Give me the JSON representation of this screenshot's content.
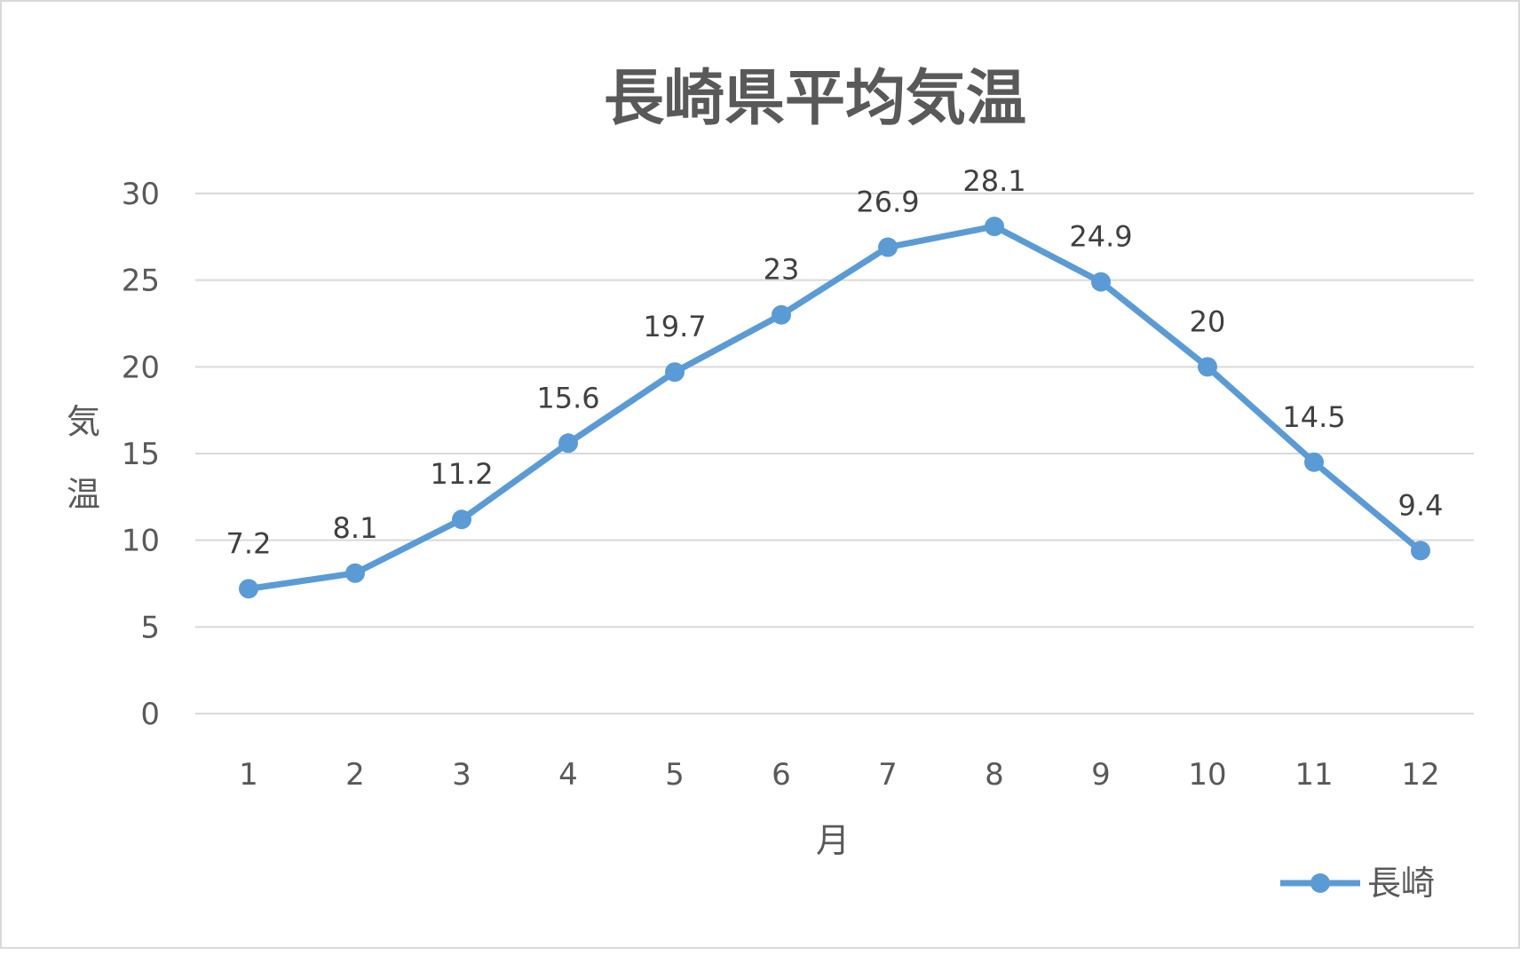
{
  "chart_data": {
    "type": "line",
    "title": "長崎県平均気温",
    "xlabel": "月",
    "ylabel": "気温",
    "categories": [
      "1",
      "2",
      "3",
      "4",
      "5",
      "6",
      "7",
      "8",
      "9",
      "10",
      "11",
      "12"
    ],
    "series": [
      {
        "name": "長崎",
        "values": [
          7.2,
          8.1,
          11.2,
          15.6,
          19.7,
          23,
          26.9,
          28.1,
          24.9,
          20,
          14.5,
          9.4
        ],
        "color": "#5b9bd5"
      }
    ],
    "ylim": [
      0,
      30
    ],
    "yticks": [
      0,
      5,
      10,
      15,
      20,
      25,
      30
    ],
    "grid": true,
    "legend_position": "bottom-right",
    "data_labels": true
  }
}
